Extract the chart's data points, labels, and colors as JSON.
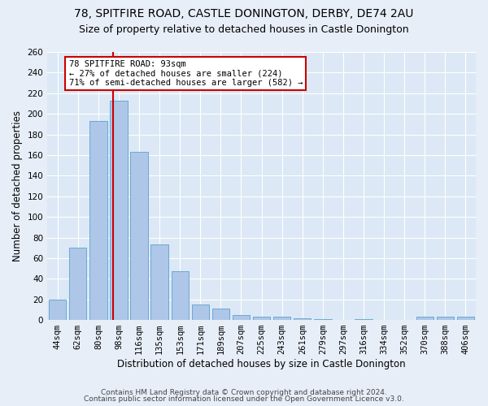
{
  "title1": "78, SPITFIRE ROAD, CASTLE DONINGTON, DERBY, DE74 2AU",
  "title2": "Size of property relative to detached houses in Castle Donington",
  "xlabel": "Distribution of detached houses by size in Castle Donington",
  "ylabel": "Number of detached properties",
  "categories": [
    "44sqm",
    "62sqm",
    "80sqm",
    "98sqm",
    "116sqm",
    "135sqm",
    "153sqm",
    "171sqm",
    "189sqm",
    "207sqm",
    "225sqm",
    "243sqm",
    "261sqm",
    "279sqm",
    "297sqm",
    "316sqm",
    "334sqm",
    "352sqm",
    "370sqm",
    "388sqm",
    "406sqm"
  ],
  "values": [
    20,
    70,
    193,
    213,
    163,
    73,
    47,
    15,
    11,
    5,
    3,
    3,
    2,
    1,
    0,
    1,
    0,
    0,
    3,
    3,
    3
  ],
  "bar_color": "#aec6e8",
  "bar_edge_color": "#6aaad4",
  "vline_color": "#cc0000",
  "annotation_line1": "78 SPITFIRE ROAD: 93sqm",
  "annotation_line2": "← 27% of detached houses are smaller (224)",
  "annotation_line3": "71% of semi-detached houses are larger (582) →",
  "annotation_box_color": "#ffffff",
  "annotation_box_edge": "#cc0000",
  "footer1": "Contains HM Land Registry data © Crown copyright and database right 2024.",
  "footer2": "Contains public sector information licensed under the Open Government Licence v3.0.",
  "ylim": [
    0,
    260
  ],
  "yticks": [
    0,
    20,
    40,
    60,
    80,
    100,
    120,
    140,
    160,
    180,
    200,
    220,
    240,
    260
  ],
  "fig_bg_color": "#e8eef8",
  "plot_bg_color": "#dce8f5",
  "title1_fontsize": 10,
  "title2_fontsize": 9,
  "xlabel_fontsize": 8.5,
  "ylabel_fontsize": 8.5,
  "tick_fontsize": 7.5,
  "footer_fontsize": 6.5
}
